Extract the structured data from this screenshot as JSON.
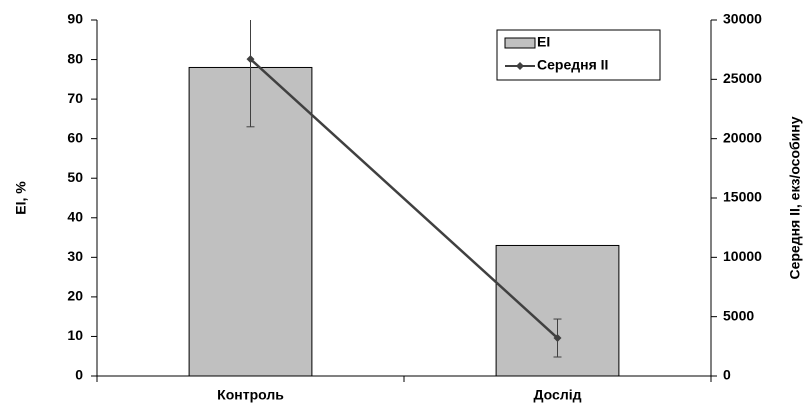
{
  "chart_data": {
    "type": "bar",
    "categories": [
      "Контроль",
      "Дослід"
    ],
    "series": [
      {
        "name": "EI",
        "type": "bar",
        "color": "#c0c0c0",
        "values": [
          78,
          33
        ]
      },
      {
        "name": "Середня II",
        "type": "line",
        "color": "#404040",
        "axis": "y2",
        "values": [
          26700,
          3200
        ],
        "errors": [
          5700,
          1600
        ]
      }
    ],
    "ylabel": "EI, %",
    "y2label": "Середня II, екз/особину",
    "ylim": [
      0,
      90
    ],
    "yticks": [
      0,
      10,
      20,
      30,
      40,
      50,
      60,
      70,
      80,
      90
    ],
    "y2lim": [
      0,
      30000
    ],
    "y2ticks": [
      0,
      5000,
      10000,
      15000,
      20000,
      25000,
      30000
    ],
    "legend": "upper right"
  }
}
